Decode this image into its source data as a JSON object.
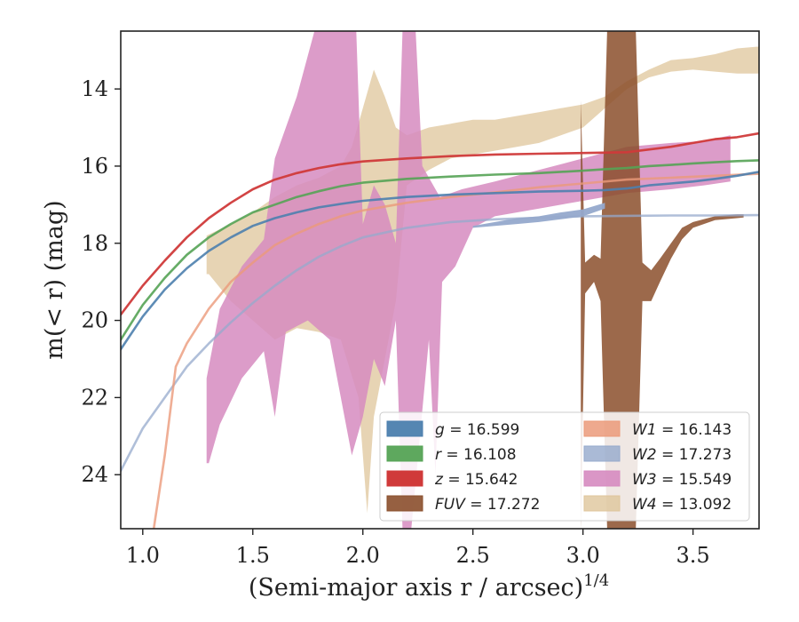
{
  "chart_data": {
    "type": "area",
    "xlabel": "(Semi-major axis r / arcsec)",
    "xlabel_superscript": "1/4",
    "ylabel": "m(< r) (mag)",
    "xlim": [
      0.9,
      3.8
    ],
    "ylim": [
      25.4,
      12.5
    ],
    "y_inverted": true,
    "grid": false,
    "legend_position": "lower-right",
    "legend_columns": 2,
    "x_ticks": [
      {
        "value": 1.0,
        "label": "1.0"
      },
      {
        "value": 1.5,
        "label": "1.5"
      },
      {
        "value": 2.0,
        "label": "2.0"
      },
      {
        "value": 2.5,
        "label": "2.5"
      },
      {
        "value": 3.0,
        "label": "3.0"
      },
      {
        "value": 3.5,
        "label": "3.5"
      }
    ],
    "y_ticks": [
      {
        "value": 14,
        "label": "14"
      },
      {
        "value": 16,
        "label": "16"
      },
      {
        "value": 18,
        "label": "18"
      },
      {
        "value": 20,
        "label": "20"
      },
      {
        "value": 22,
        "label": "22"
      },
      {
        "value": 24,
        "label": "24"
      }
    ],
    "series": [
      {
        "name": "g",
        "label": "g = 16.599",
        "color": "#4c7fae",
        "opacity": 0.9,
        "line": [
          [
            0.9,
            20.75
          ],
          [
            1.0,
            19.9
          ],
          [
            1.1,
            19.2
          ],
          [
            1.2,
            18.65
          ],
          [
            1.3,
            18.2
          ],
          [
            1.4,
            17.85
          ],
          [
            1.5,
            17.55
          ],
          [
            1.6,
            17.35
          ],
          [
            1.7,
            17.2
          ],
          [
            1.8,
            17.07
          ],
          [
            1.9,
            16.98
          ],
          [
            2.0,
            16.9
          ],
          [
            2.2,
            16.8
          ],
          [
            2.4,
            16.74
          ],
          [
            2.6,
            16.7
          ],
          [
            2.8,
            16.66
          ],
          [
            3.0,
            16.64
          ],
          [
            3.1,
            16.62
          ],
          [
            3.2,
            16.58
          ],
          [
            3.3,
            16.5
          ],
          [
            3.4,
            16.45
          ],
          [
            3.5,
            16.4
          ],
          [
            3.6,
            16.33
          ],
          [
            3.7,
            16.25
          ],
          [
            3.8,
            16.15
          ]
        ]
      },
      {
        "name": "r",
        "label": "r = 16.108",
        "color": "#55a355",
        "opacity": 0.9,
        "line": [
          [
            0.9,
            20.5
          ],
          [
            1.0,
            19.6
          ],
          [
            1.1,
            18.9
          ],
          [
            1.2,
            18.3
          ],
          [
            1.3,
            17.85
          ],
          [
            1.4,
            17.5
          ],
          [
            1.5,
            17.2
          ],
          [
            1.6,
            17.0
          ],
          [
            1.7,
            16.8
          ],
          [
            1.8,
            16.65
          ],
          [
            1.9,
            16.52
          ],
          [
            2.0,
            16.43
          ],
          [
            2.2,
            16.33
          ],
          [
            2.4,
            16.27
          ],
          [
            2.6,
            16.22
          ],
          [
            2.8,
            16.18
          ],
          [
            3.0,
            16.12
          ],
          [
            3.1,
            16.08
          ],
          [
            3.2,
            16.05
          ],
          [
            3.3,
            16.0
          ],
          [
            3.4,
            15.97
          ],
          [
            3.5,
            15.93
          ],
          [
            3.6,
            15.9
          ],
          [
            3.7,
            15.87
          ],
          [
            3.8,
            15.85
          ]
        ]
      },
      {
        "name": "z",
        "label": "z = 15.642",
        "color": "#d03a3a",
        "opacity": 0.95,
        "line": [
          [
            0.9,
            19.85
          ],
          [
            1.0,
            19.1
          ],
          [
            1.1,
            18.45
          ],
          [
            1.2,
            17.85
          ],
          [
            1.3,
            17.35
          ],
          [
            1.4,
            16.95
          ],
          [
            1.5,
            16.6
          ],
          [
            1.6,
            16.35
          ],
          [
            1.7,
            16.18
          ],
          [
            1.8,
            16.05
          ],
          [
            1.9,
            15.95
          ],
          [
            2.0,
            15.88
          ],
          [
            2.2,
            15.8
          ],
          [
            2.4,
            15.74
          ],
          [
            2.6,
            15.7
          ],
          [
            2.8,
            15.68
          ],
          [
            3.0,
            15.66
          ],
          [
            3.2,
            15.64
          ],
          [
            3.4,
            15.5
          ],
          [
            3.5,
            15.4
          ],
          [
            3.6,
            15.3
          ],
          [
            3.7,
            15.25
          ],
          [
            3.8,
            15.15
          ]
        ]
      },
      {
        "name": "FUV",
        "label": "FUV = 17.272",
        "color": "#8b4f2c",
        "opacity": 0.85,
        "upper": [
          [
            2.99,
            14.3
          ],
          [
            3.01,
            18.5
          ],
          [
            3.05,
            18.3
          ],
          [
            3.08,
            18.4
          ],
          [
            3.11,
            12.5
          ],
          [
            3.24,
            12.5
          ],
          [
            3.27,
            18.5
          ],
          [
            3.31,
            18.7
          ],
          [
            3.35,
            18.4
          ],
          [
            3.4,
            18.0
          ],
          [
            3.45,
            17.6
          ],
          [
            3.5,
            17.45
          ],
          [
            3.6,
            17.3
          ],
          [
            3.7,
            17.25
          ],
          [
            3.73,
            17.25
          ]
        ],
        "lower": [
          [
            3.73,
            17.33
          ],
          [
            3.7,
            17.35
          ],
          [
            3.6,
            17.4
          ],
          [
            3.5,
            17.6
          ],
          [
            3.45,
            17.9
          ],
          [
            3.4,
            18.4
          ],
          [
            3.35,
            19.0
          ],
          [
            3.31,
            19.5
          ],
          [
            3.27,
            19.5
          ],
          [
            3.24,
            25.4
          ],
          [
            3.11,
            25.4
          ],
          [
            3.08,
            19.5
          ],
          [
            3.05,
            19.0
          ],
          [
            3.01,
            19.3
          ],
          [
            2.99,
            25.4
          ]
        ]
      },
      {
        "name": "W1",
        "label": "W1 = 16.143",
        "color": "#eb9a7a",
        "opacity": 0.8,
        "line": [
          [
            1.05,
            25.4
          ],
          [
            1.1,
            23.5
          ],
          [
            1.15,
            21.2
          ],
          [
            1.2,
            20.6
          ],
          [
            1.3,
            19.7
          ],
          [
            1.4,
            19.0
          ],
          [
            1.5,
            18.5
          ],
          [
            1.6,
            18.05
          ],
          [
            1.7,
            17.75
          ],
          [
            1.8,
            17.5
          ],
          [
            1.9,
            17.3
          ],
          [
            2.0,
            17.15
          ],
          [
            2.2,
            16.95
          ],
          [
            2.4,
            16.8
          ],
          [
            2.6,
            16.68
          ],
          [
            2.8,
            16.55
          ],
          [
            3.0,
            16.45
          ],
          [
            3.2,
            16.35
          ],
          [
            3.4,
            16.3
          ],
          [
            3.6,
            16.25
          ],
          [
            3.8,
            16.2
          ]
        ]
      },
      {
        "name": "W2",
        "label": "W2 = 17.273",
        "color": "#95a9cc",
        "opacity": 0.75,
        "line": [
          [
            0.9,
            23.9
          ],
          [
            1.0,
            22.8
          ],
          [
            1.1,
            22.0
          ],
          [
            1.2,
            21.2
          ],
          [
            1.3,
            20.6
          ],
          [
            1.4,
            20.05
          ],
          [
            1.5,
            19.55
          ],
          [
            1.6,
            19.1
          ],
          [
            1.7,
            18.7
          ],
          [
            1.8,
            18.35
          ],
          [
            1.9,
            18.08
          ],
          [
            2.0,
            17.85
          ],
          [
            2.2,
            17.6
          ],
          [
            2.4,
            17.45
          ],
          [
            2.6,
            17.38
          ],
          [
            2.8,
            17.34
          ],
          [
            3.0,
            17.3
          ],
          [
            3.2,
            17.29
          ],
          [
            3.4,
            17.28
          ],
          [
            3.6,
            17.28
          ],
          [
            3.8,
            17.27
          ]
        ],
        "band_upper": [
          [
            2.5,
            17.55
          ],
          [
            2.6,
            17.45
          ],
          [
            2.7,
            17.35
          ],
          [
            2.8,
            17.3
          ],
          [
            2.9,
            17.2
          ],
          [
            3.0,
            17.12
          ],
          [
            3.1,
            16.95
          ]
        ],
        "band_lower": [
          [
            3.1,
            17.1
          ],
          [
            3.0,
            17.3
          ],
          [
            2.9,
            17.38
          ],
          [
            2.8,
            17.45
          ],
          [
            2.7,
            17.5
          ],
          [
            2.6,
            17.55
          ],
          [
            2.5,
            17.6
          ]
        ]
      },
      {
        "name": "W3",
        "label": "W3 = 15.549",
        "color": "#d68bc0",
        "opacity": 0.85,
        "upper": [
          [
            1.29,
            21.5
          ],
          [
            1.35,
            19.7
          ],
          [
            1.45,
            18.6
          ],
          [
            1.55,
            17.9
          ],
          [
            1.6,
            15.8
          ],
          [
            1.7,
            14.2
          ],
          [
            1.78,
            12.5
          ],
          [
            1.97,
            12.5
          ],
          [
            2.0,
            17.5
          ],
          [
            2.05,
            16.5
          ],
          [
            2.1,
            17.0
          ],
          [
            2.15,
            18.0
          ],
          [
            2.18,
            12.5
          ],
          [
            2.24,
            12.5
          ],
          [
            2.27,
            16.0
          ],
          [
            2.35,
            16.8
          ],
          [
            2.45,
            16.6
          ],
          [
            2.6,
            16.4
          ],
          [
            2.8,
            16.1
          ],
          [
            3.0,
            15.8
          ],
          [
            3.2,
            15.5
          ],
          [
            3.4,
            15.4
          ],
          [
            3.55,
            15.35
          ],
          [
            3.67,
            15.2
          ]
        ],
        "lower": [
          [
            3.67,
            16.4
          ],
          [
            3.55,
            16.5
          ],
          [
            3.4,
            16.6
          ],
          [
            3.2,
            16.7
          ],
          [
            3.0,
            16.9
          ],
          [
            2.8,
            17.1
          ],
          [
            2.6,
            17.3
          ],
          [
            2.5,
            17.6
          ],
          [
            2.42,
            18.6
          ],
          [
            2.36,
            19.0
          ],
          [
            2.33,
            24.0
          ],
          [
            2.3,
            20.5
          ],
          [
            2.22,
            25.4
          ],
          [
            2.18,
            25.4
          ],
          [
            2.15,
            20.0
          ],
          [
            2.1,
            21.7
          ],
          [
            2.05,
            21.0
          ],
          [
            2.0,
            22.5
          ],
          [
            1.95,
            23.5
          ],
          [
            1.85,
            20.5
          ],
          [
            1.75,
            20.0
          ],
          [
            1.65,
            20.3
          ],
          [
            1.6,
            22.5
          ],
          [
            1.55,
            20.8
          ],
          [
            1.45,
            21.5
          ],
          [
            1.35,
            22.7
          ],
          [
            1.3,
            23.7
          ],
          [
            1.29,
            23.7
          ]
        ]
      },
      {
        "name": "W4",
        "label": "W4 = 13.092",
        "color": "#dfc59b",
        "opacity": 0.75,
        "upper": [
          [
            1.29,
            17.8
          ],
          [
            1.4,
            17.5
          ],
          [
            1.5,
            17.2
          ],
          [
            1.6,
            16.8
          ],
          [
            1.7,
            16.5
          ],
          [
            1.8,
            16.3
          ],
          [
            1.9,
            16.0
          ],
          [
            1.95,
            15.5
          ],
          [
            2.0,
            14.5
          ],
          [
            2.05,
            13.5
          ],
          [
            2.1,
            14.2
          ],
          [
            2.15,
            15.0
          ],
          [
            2.2,
            15.2
          ],
          [
            2.3,
            15.0
          ],
          [
            2.4,
            14.9
          ],
          [
            2.5,
            14.8
          ],
          [
            2.6,
            14.8
          ],
          [
            2.7,
            14.7
          ],
          [
            2.8,
            14.6
          ],
          [
            2.9,
            14.5
          ],
          [
            3.0,
            14.4
          ],
          [
            3.1,
            14.2
          ],
          [
            3.2,
            13.8
          ],
          [
            3.3,
            13.5
          ],
          [
            3.4,
            13.25
          ],
          [
            3.5,
            13.2
          ],
          [
            3.6,
            13.1
          ],
          [
            3.7,
            12.95
          ],
          [
            3.8,
            12.9
          ]
        ],
        "lower": [
          [
            3.8,
            13.6
          ],
          [
            3.7,
            13.6
          ],
          [
            3.6,
            13.55
          ],
          [
            3.5,
            13.5
          ],
          [
            3.4,
            13.55
          ],
          [
            3.3,
            13.7
          ],
          [
            3.2,
            14.0
          ],
          [
            3.1,
            14.5
          ],
          [
            3.0,
            15.0
          ],
          [
            2.9,
            15.2
          ],
          [
            2.8,
            15.4
          ],
          [
            2.7,
            15.5
          ],
          [
            2.6,
            15.6
          ],
          [
            2.5,
            15.7
          ],
          [
            2.4,
            15.8
          ],
          [
            2.3,
            16.1
          ],
          [
            2.2,
            16.5
          ],
          [
            2.15,
            19.5
          ],
          [
            2.1,
            21.0
          ],
          [
            2.05,
            22.5
          ],
          [
            2.02,
            25.0
          ],
          [
            1.98,
            22.0
          ],
          [
            1.9,
            20.5
          ],
          [
            1.8,
            20.3
          ],
          [
            1.7,
            20.2
          ],
          [
            1.6,
            20.5
          ],
          [
            1.5,
            20.0
          ],
          [
            1.4,
            19.5
          ],
          [
            1.3,
            18.8
          ],
          [
            1.29,
            18.8
          ]
        ]
      }
    ]
  }
}
